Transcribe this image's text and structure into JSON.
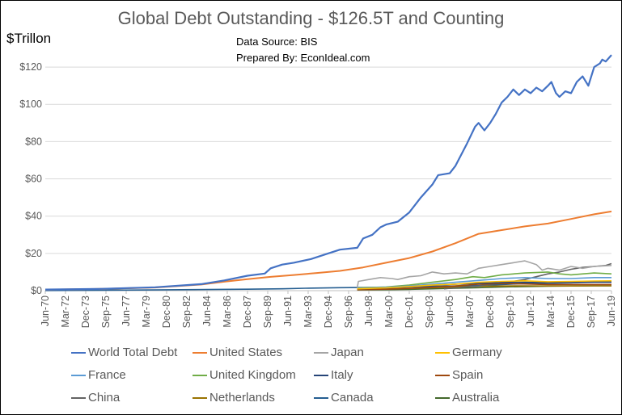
{
  "chart_data": {
    "type": "line",
    "title": "Global Debt Outstanding - $126.5T and Counting",
    "ylabel": "$Trillon",
    "source_lines": [
      "Data Source: BIS",
      "Prepared By: EconIdeal.com"
    ],
    "ylim": [
      0,
      130
    ],
    "yticks": [
      0,
      20,
      40,
      60,
      80,
      100,
      120
    ],
    "ytick_labels": [
      "$0",
      "$20",
      "$40",
      "$60",
      "$80",
      "$100",
      "$120"
    ],
    "x_start": 1970.5,
    "x_end": 2019.5,
    "xtick_labels": [
      "Jun-70",
      "Mar-72",
      "Dec-73",
      "Sep-75",
      "Jun-77",
      "Mar-79",
      "Dec-80",
      "Sep-82",
      "Jun-84",
      "Mar-86",
      "Dec-87",
      "Sep-89",
      "Jun-91",
      "Mar-93",
      "Dec-94",
      "Sep-96",
      "Jun-98",
      "Mar-00",
      "Dec-01",
      "Sep-03",
      "Jun-05",
      "Mar-07",
      "Dec-08",
      "Sep-10",
      "Jun-12",
      "Mar-14",
      "Dec-15",
      "Sep-17",
      "Jun-19"
    ],
    "grid": true,
    "legend_position": "bottom",
    "series": [
      {
        "name": "World Total Debt",
        "color": "#4472C4",
        "width": 2.2,
        "points": [
          [
            1970.5,
            0.6
          ],
          [
            1975,
            0.9
          ],
          [
            1980,
            1.8
          ],
          [
            1984,
            3.5
          ],
          [
            1986,
            5.5
          ],
          [
            1988,
            8
          ],
          [
            1989.5,
            9.2
          ],
          [
            1990,
            12
          ],
          [
            1991,
            14
          ],
          [
            1992,
            15
          ],
          [
            1993.5,
            17
          ],
          [
            1995,
            20
          ],
          [
            1996,
            22
          ],
          [
            1997.5,
            23
          ],
          [
            1998,
            28
          ],
          [
            1998.8,
            30
          ],
          [
            1999.5,
            34
          ],
          [
            2000,
            35.5
          ],
          [
            2001,
            37
          ],
          [
            2002,
            42
          ],
          [
            2003,
            50
          ],
          [
            2004,
            57
          ],
          [
            2004.5,
            62
          ],
          [
            2005.5,
            63
          ],
          [
            2006,
            67
          ],
          [
            2007,
            79
          ],
          [
            2007.7,
            88
          ],
          [
            2008,
            90
          ],
          [
            2008.5,
            86
          ],
          [
            2009,
            90
          ],
          [
            2009.5,
            95
          ],
          [
            2010,
            101
          ],
          [
            2010.5,
            104
          ],
          [
            2011,
            108
          ],
          [
            2011.5,
            105
          ],
          [
            2012,
            108
          ],
          [
            2012.5,
            106
          ],
          [
            2013,
            109
          ],
          [
            2013.5,
            107
          ],
          [
            2014,
            110
          ],
          [
            2014.3,
            112
          ],
          [
            2014.7,
            106
          ],
          [
            2015,
            104
          ],
          [
            2015.5,
            107
          ],
          [
            2016,
            106
          ],
          [
            2016.5,
            112
          ],
          [
            2017,
            115
          ],
          [
            2017.5,
            110
          ],
          [
            2018,
            120
          ],
          [
            2018.5,
            122
          ],
          [
            2018.7,
            124
          ],
          [
            2019,
            123
          ],
          [
            2019.5,
            126.5
          ]
        ]
      },
      {
        "name": "United States",
        "color": "#ED7D31",
        "width": 2,
        "points": [
          [
            1970.5,
            0.5
          ],
          [
            1975,
            0.9
          ],
          [
            1980,
            1.7
          ],
          [
            1984,
            3.3
          ],
          [
            1986,
            4.8
          ],
          [
            1988,
            6.2
          ],
          [
            1990,
            7.4
          ],
          [
            1992,
            8.4
          ],
          [
            1994,
            9.5
          ],
          [
            1996,
            10.6
          ],
          [
            1998,
            12.5
          ],
          [
            2000,
            15
          ],
          [
            2002,
            17.5
          ],
          [
            2004,
            21
          ],
          [
            2006,
            25.5
          ],
          [
            2008,
            30.5
          ],
          [
            2010,
            32.5
          ],
          [
            2012,
            34.5
          ],
          [
            2014,
            36
          ],
          [
            2016,
            38.5
          ],
          [
            2018,
            41
          ],
          [
            2019.5,
            42.5
          ]
        ]
      },
      {
        "name": "Japan",
        "color": "#A5A5A5",
        "width": 1.6,
        "points": [
          [
            1997.5,
            1.5
          ],
          [
            1997.6,
            5
          ],
          [
            1998.5,
            6
          ],
          [
            1999.5,
            7
          ],
          [
            2000.5,
            6.5
          ],
          [
            2001,
            6
          ],
          [
            2002,
            7.5
          ],
          [
            2003,
            8
          ],
          [
            2004,
            10
          ],
          [
            2005,
            9
          ],
          [
            2006,
            9.5
          ],
          [
            2007,
            9
          ],
          [
            2008,
            12
          ],
          [
            2009,
            13
          ],
          [
            2010,
            14
          ],
          [
            2011,
            15
          ],
          [
            2012,
            16
          ],
          [
            2012.5,
            15
          ],
          [
            2013,
            14
          ],
          [
            2013.5,
            11
          ],
          [
            2014,
            12
          ],
          [
            2015,
            11
          ],
          [
            2016,
            13
          ],
          [
            2017,
            12
          ],
          [
            2018,
            13
          ],
          [
            2019.5,
            13.5
          ]
        ]
      },
      {
        "name": "Germany",
        "color": "#FFC000",
        "width": 1.6,
        "points": [
          [
            1997.5,
            1
          ],
          [
            2000,
            1.5
          ],
          [
            2002,
            2.2
          ],
          [
            2004,
            3
          ],
          [
            2006,
            3.5
          ],
          [
            2008,
            4.5
          ],
          [
            2010,
            5
          ],
          [
            2012,
            5.3
          ],
          [
            2014,
            4.8
          ],
          [
            2016,
            5
          ],
          [
            2018,
            5.2
          ],
          [
            2019.5,
            5.3
          ]
        ]
      },
      {
        "name": "France",
        "color": "#5B9BD5",
        "width": 1.6,
        "points": [
          [
            1997.5,
            1.2
          ],
          [
            2000,
            1.8
          ],
          [
            2002,
            2.5
          ],
          [
            2004,
            3.5
          ],
          [
            2006,
            4.5
          ],
          [
            2008,
            5.5
          ],
          [
            2010,
            6.5
          ],
          [
            2012,
            7
          ],
          [
            2014,
            6.5
          ],
          [
            2016,
            6.5
          ],
          [
            2018,
            7
          ],
          [
            2019.5,
            7
          ]
        ]
      },
      {
        "name": "United Kingdom",
        "color": "#70AD47",
        "width": 1.6,
        "points": [
          [
            1997.5,
            1.5
          ],
          [
            2000,
            2
          ],
          [
            2002,
            3
          ],
          [
            2004,
            4.5
          ],
          [
            2006,
            6
          ],
          [
            2007.5,
            7.5
          ],
          [
            2008.5,
            7
          ],
          [
            2010,
            8.5
          ],
          [
            2012,
            9.5
          ],
          [
            2014,
            10
          ],
          [
            2015,
            9
          ],
          [
            2016,
            8.5
          ],
          [
            2018,
            9.5
          ],
          [
            2019.5,
            9
          ]
        ]
      },
      {
        "name": "Italy",
        "color": "#264478",
        "width": 1.6,
        "points": [
          [
            1997.5,
            1
          ],
          [
            2000,
            1.5
          ],
          [
            2002,
            2
          ],
          [
            2004,
            2.8
          ],
          [
            2006,
            3.5
          ],
          [
            2008,
            4
          ],
          [
            2010,
            4.3
          ],
          [
            2012,
            4.5
          ],
          [
            2014,
            4.3
          ],
          [
            2016,
            4.3
          ],
          [
            2018,
            4.5
          ],
          [
            2019.5,
            4.5
          ]
        ]
      },
      {
        "name": "Spain",
        "color": "#9E480E",
        "width": 1.6,
        "points": [
          [
            1997.5,
            0.5
          ],
          [
            2000,
            0.8
          ],
          [
            2002,
            1.2
          ],
          [
            2004,
            1.8
          ],
          [
            2006,
            2.5
          ],
          [
            2008,
            3.5
          ],
          [
            2010,
            3.8
          ],
          [
            2012,
            3.6
          ],
          [
            2014,
            3.3
          ],
          [
            2016,
            3.3
          ],
          [
            2018,
            3.3
          ],
          [
            2019.5,
            3.3
          ]
        ]
      },
      {
        "name": "China",
        "color": "#636363",
        "width": 1.6,
        "points": [
          [
            2005,
            1
          ],
          [
            2006,
            1.5
          ],
          [
            2008,
            2.5
          ],
          [
            2009,
            3.5
          ],
          [
            2010,
            4.5
          ],
          [
            2011,
            5
          ],
          [
            2012,
            6
          ],
          [
            2013,
            7.5
          ],
          [
            2014,
            9
          ],
          [
            2015,
            10
          ],
          [
            2016,
            11.5
          ],
          [
            2017,
            12.5
          ],
          [
            2018,
            13
          ],
          [
            2019,
            13.5
          ],
          [
            2019.5,
            14.5
          ]
        ]
      },
      {
        "name": "Netherlands",
        "color": "#997300",
        "width": 1.6,
        "points": [
          [
            1997.5,
            0.6
          ],
          [
            2000,
            0.9
          ],
          [
            2002,
            1.2
          ],
          [
            2004,
            1.6
          ],
          [
            2006,
            2
          ],
          [
            2008,
            2.4
          ],
          [
            2010,
            2.5
          ],
          [
            2012,
            2.6
          ],
          [
            2014,
            2.5
          ],
          [
            2016,
            2.5
          ],
          [
            2018,
            2.6
          ],
          [
            2019.5,
            2.6
          ]
        ]
      },
      {
        "name": "Canada",
        "color": "#255E91",
        "width": 1.6,
        "points": [
          [
            1970.5,
            0.1
          ],
          [
            1980,
            0.4
          ],
          [
            1988,
            0.8
          ],
          [
            1991,
            1
          ],
          [
            1993,
            1.3
          ],
          [
            1996,
            1.6
          ],
          [
            2000,
            1.8
          ],
          [
            2004,
            2.3
          ],
          [
            2008,
            2.8
          ],
          [
            2010,
            3.3
          ],
          [
            2012,
            3.8
          ],
          [
            2014,
            4
          ],
          [
            2016,
            4.2
          ],
          [
            2018,
            4.8
          ],
          [
            2019.5,
            5
          ]
        ]
      },
      {
        "name": "Australia",
        "color": "#43682B",
        "width": 1.6,
        "points": [
          [
            1997.5,
            0.4
          ],
          [
            2000,
            0.5
          ],
          [
            2002,
            0.7
          ],
          [
            2004,
            1
          ],
          [
            2006,
            1.3
          ],
          [
            2008,
            1.6
          ],
          [
            2010,
            2
          ],
          [
            2012,
            2.2
          ],
          [
            2014,
            2.4
          ],
          [
            2016,
            2.5
          ],
          [
            2018,
            2.6
          ],
          [
            2019.5,
            2.6
          ]
        ]
      }
    ]
  }
}
